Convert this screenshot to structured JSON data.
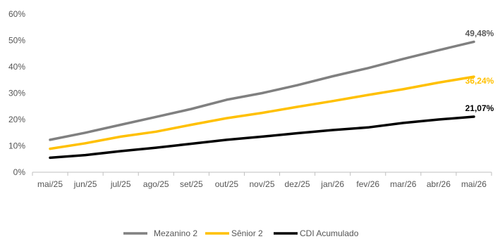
{
  "chart_data": {
    "type": "line",
    "categories": [
      "mai/25",
      "jun/25",
      "jul/25",
      "ago/25",
      "set/25",
      "out/25",
      "nov/25",
      "dez/25",
      "jan/26",
      "fev/26",
      "mar/26",
      "abr/26",
      "mai/26"
    ],
    "ylim": [
      0,
      60
    ],
    "y_ticks": [
      "0%",
      "10%",
      "20%",
      "30%",
      "40%",
      "50%",
      "60%"
    ],
    "y_tick_values": [
      0,
      10,
      20,
      30,
      40,
      50,
      60
    ],
    "grid": false,
    "legend_position": "bottom",
    "series": [
      {
        "name": "Mezanino 2",
        "color": "#808080",
        "values": [
          12.3,
          15.0,
          18.0,
          21.0,
          24.0,
          27.5,
          30.0,
          33.0,
          36.4,
          39.5,
          43.0,
          46.3,
          49.48
        ],
        "end_label": "49,48%"
      },
      {
        "name": "Sênior 2",
        "color": "#FFC000",
        "values": [
          8.9,
          11.0,
          13.5,
          15.4,
          18.0,
          20.5,
          22.5,
          24.8,
          27.0,
          29.3,
          31.5,
          34.0,
          36.24
        ],
        "end_label": "36,24%"
      },
      {
        "name": "CDI Acumulado",
        "color": "#000000",
        "values": [
          5.5,
          6.5,
          8.0,
          9.3,
          10.8,
          12.3,
          13.5,
          14.8,
          16.0,
          17.0,
          18.7,
          20.0,
          21.07
        ],
        "end_label": "21,07%"
      }
    ]
  }
}
